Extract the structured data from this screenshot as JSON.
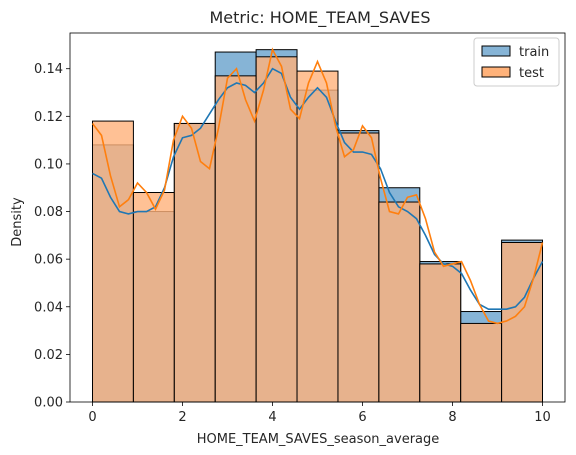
{
  "chart_data": {
    "type": "histogram",
    "title": "Metric: HOME_TEAM_SAVES",
    "xlabel": "HOME_TEAM_SAVES_season_average",
    "ylabel": "Density",
    "xlim": [
      -0.5,
      10.5
    ],
    "ylim": [
      0,
      0.155
    ],
    "xticks": [
      0,
      2,
      4,
      6,
      8,
      10
    ],
    "yticks": [
      0.0,
      0.02,
      0.04,
      0.06,
      0.08,
      0.1,
      0.12,
      0.14
    ],
    "ytick_labels": [
      "0.00",
      "0.02",
      "0.04",
      "0.06",
      "0.08",
      "0.10",
      "0.12",
      "0.14"
    ],
    "bin_edges": [
      0,
      0.909,
      1.818,
      2.727,
      3.636,
      4.545,
      5.455,
      6.364,
      7.273,
      8.182,
      9.091,
      10
    ],
    "legend_position": "top-right",
    "series": [
      {
        "name": "train",
        "color": "#1f77b4",
        "fill": "#86b4d6",
        "values": [
          0.108,
          0.08,
          0.117,
          0.147,
          0.148,
          0.131,
          0.114,
          0.09,
          0.059,
          0.038,
          0.068
        ],
        "kde_x": [
          0,
          0.2,
          0.4,
          0.6,
          0.8,
          1.0,
          1.2,
          1.4,
          1.6,
          1.8,
          2.0,
          2.2,
          2.4,
          2.6,
          2.8,
          3.0,
          3.2,
          3.4,
          3.6,
          3.8,
          4.0,
          4.2,
          4.4,
          4.6,
          4.8,
          5.0,
          5.2,
          5.4,
          5.6,
          5.8,
          6.0,
          6.2,
          6.4,
          6.6,
          6.8,
          7.0,
          7.2,
          7.4,
          7.6,
          7.8,
          8.0,
          8.2,
          8.4,
          8.6,
          8.8,
          9.0,
          9.2,
          9.4,
          9.6,
          9.8,
          10.0
        ],
        "kde_y": [
          0.096,
          0.094,
          0.086,
          0.08,
          0.079,
          0.08,
          0.08,
          0.082,
          0.09,
          0.103,
          0.111,
          0.112,
          0.115,
          0.121,
          0.127,
          0.132,
          0.134,
          0.133,
          0.13,
          0.134,
          0.14,
          0.138,
          0.128,
          0.123,
          0.128,
          0.132,
          0.128,
          0.118,
          0.109,
          0.105,
          0.105,
          0.104,
          0.098,
          0.088,
          0.082,
          0.08,
          0.077,
          0.07,
          0.062,
          0.058,
          0.057,
          0.054,
          0.047,
          0.041,
          0.039,
          0.039,
          0.039,
          0.04,
          0.044,
          0.052,
          0.059
        ]
      },
      {
        "name": "test",
        "color": "#ff7f0e",
        "fill": "#ffb27a",
        "values": [
          0.118,
          0.088,
          0.117,
          0.137,
          0.145,
          0.139,
          0.113,
          0.084,
          0.058,
          0.033,
          0.067
        ],
        "kde_x": [
          0,
          0.2,
          0.4,
          0.6,
          0.8,
          1.0,
          1.2,
          1.4,
          1.6,
          1.8,
          2.0,
          2.2,
          2.4,
          2.6,
          2.8,
          3.0,
          3.2,
          3.4,
          3.6,
          3.8,
          4.0,
          4.2,
          4.4,
          4.6,
          4.8,
          5.0,
          5.2,
          5.4,
          5.6,
          5.8,
          6.0,
          6.2,
          6.4,
          6.6,
          6.8,
          7.0,
          7.2,
          7.4,
          7.6,
          7.8,
          8.0,
          8.2,
          8.4,
          8.6,
          8.8,
          9.0,
          9.2,
          9.4,
          9.6,
          9.8,
          10.0
        ],
        "kde_y": [
          0.117,
          0.112,
          0.095,
          0.082,
          0.085,
          0.092,
          0.088,
          0.081,
          0.089,
          0.11,
          0.12,
          0.115,
          0.101,
          0.098,
          0.115,
          0.136,
          0.14,
          0.127,
          0.118,
          0.131,
          0.148,
          0.141,
          0.123,
          0.119,
          0.134,
          0.143,
          0.134,
          0.116,
          0.103,
          0.106,
          0.116,
          0.111,
          0.094,
          0.08,
          0.079,
          0.086,
          0.087,
          0.077,
          0.063,
          0.057,
          0.058,
          0.059,
          0.051,
          0.041,
          0.034,
          0.033,
          0.034,
          0.036,
          0.04,
          0.052,
          0.067
        ]
      }
    ]
  }
}
